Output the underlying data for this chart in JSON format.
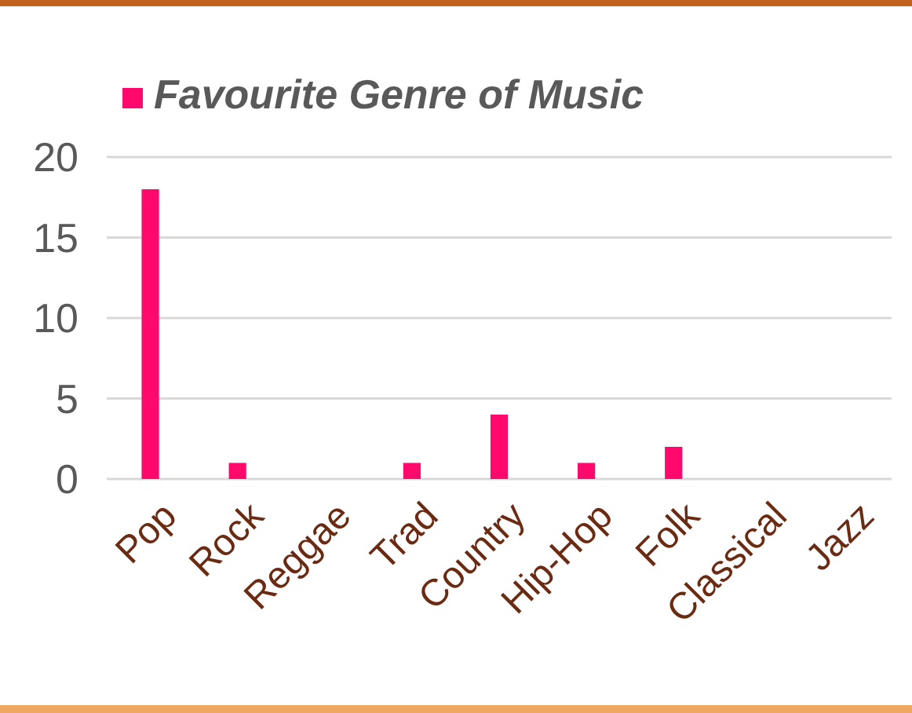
{
  "chart_data": {
    "type": "bar",
    "categories": [
      "Pop",
      "Rock",
      "Reggae",
      "Trad",
      "Country",
      "Hip-Hop",
      "Folk",
      "Classical",
      "Jazz"
    ],
    "series": [
      {
        "name": "Favourite Genre of Music",
        "color": "#ff0a6c",
        "values": [
          18,
          1,
          0,
          1,
          4,
          1,
          2,
          0,
          0
        ]
      }
    ],
    "ylim": [
      0,
      20
    ],
    "yticks": [
      0,
      5,
      10,
      15,
      20
    ],
    "grid": "y",
    "legend": "top"
  }
}
